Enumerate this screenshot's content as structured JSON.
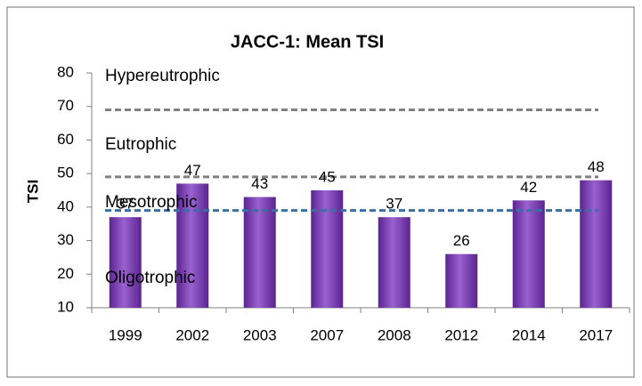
{
  "chart_data": {
    "type": "bar",
    "title": "JACC-1: Mean TSI",
    "y_label": "TSI",
    "categories": [
      "1999",
      "2002",
      "2003",
      "2007",
      "2008",
      "2012",
      "2014",
      "2017"
    ],
    "values": [
      37,
      47,
      43,
      45,
      37,
      26,
      42,
      48
    ],
    "color": "#7b3fb0",
    "ylim": [
      10,
      80
    ],
    "yticks": [
      10,
      20,
      30,
      40,
      50,
      60,
      70,
      80
    ],
    "grid": false,
    "reference_lines": [
      {
        "value": 69,
        "color": "#808080"
      },
      {
        "value": 49,
        "color": "#808080"
      },
      {
        "value": 39,
        "color": "#3a6ea5"
      }
    ],
    "annotations": [
      "Hypereutrophic",
      "Eutrophic",
      "Mesotrophic",
      "Oligotrophic"
    ]
  }
}
